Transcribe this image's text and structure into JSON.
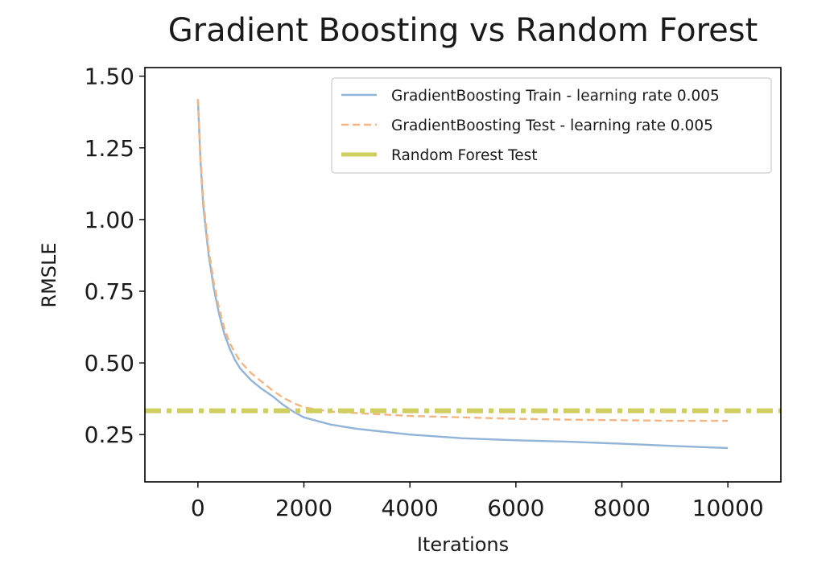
{
  "chart_data": {
    "type": "line",
    "title": "Gradient Boosting vs Random Forest",
    "xlabel": "Iterations",
    "ylabel": "RMSLE",
    "xlim": [
      -1000,
      11000
    ],
    "ylim": [
      0.085,
      1.53
    ],
    "xticks": [
      0,
      2000,
      4000,
      6000,
      8000,
      10000
    ],
    "xtick_labels": [
      "0",
      "2000",
      "4000",
      "6000",
      "8000",
      "10000"
    ],
    "yticks": [
      0.25,
      0.5,
      0.75,
      1.0,
      1.25,
      1.5
    ],
    "ytick_labels": [
      "0.25",
      "0.50",
      "0.75",
      "1.00",
      "1.25",
      "1.50"
    ],
    "grid": false,
    "legend_position": "top-right",
    "series": [
      {
        "name": "GradientBoosting Train - learning rate 0.005",
        "style": "solid",
        "color": "#91b4d8",
        "x": [
          0,
          50,
          100,
          200,
          300,
          400,
          500,
          600,
          700,
          800,
          1000,
          1200,
          1400,
          1600,
          1800,
          2000,
          2500,
          3000,
          3500,
          4000,
          5000,
          6000,
          7000,
          8000,
          9000,
          10000
        ],
        "y": [
          1.42,
          1.2,
          1.05,
          0.88,
          0.76,
          0.67,
          0.6,
          0.55,
          0.51,
          0.48,
          0.44,
          0.41,
          0.385,
          0.355,
          0.33,
          0.31,
          0.285,
          0.27,
          0.26,
          0.25,
          0.237,
          0.23,
          0.225,
          0.218,
          0.21,
          0.203
        ]
      },
      {
        "name": "GradientBoosting Test  - learning rate 0.005",
        "style": "dashed",
        "color": "#f5b482",
        "x": [
          0,
          50,
          100,
          200,
          300,
          400,
          500,
          600,
          700,
          800,
          1000,
          1200,
          1400,
          1600,
          1800,
          2000,
          2500,
          3000,
          3500,
          4000,
          5000,
          6000,
          7000,
          8000,
          9000,
          10000
        ],
        "y": [
          1.42,
          1.21,
          1.07,
          0.9,
          0.78,
          0.69,
          0.62,
          0.57,
          0.535,
          0.505,
          0.465,
          0.435,
          0.405,
          0.38,
          0.36,
          0.345,
          0.33,
          0.325,
          0.32,
          0.315,
          0.31,
          0.305,
          0.302,
          0.3,
          0.298,
          0.298
        ]
      },
      {
        "name": "Random Forest Test",
        "style": "dashdot",
        "color": "#cfcf5f",
        "horizontal": true,
        "y": 0.333
      }
    ]
  }
}
